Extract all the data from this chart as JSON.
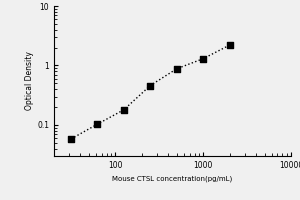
{
  "x_values": [
    31.25,
    62.5,
    125,
    250,
    500,
    1000,
    2000
  ],
  "y_values": [
    0.058,
    0.103,
    0.18,
    0.46,
    0.88,
    1.3,
    2.2
  ],
  "xlabel": "Mouse CTSL concentration(pg/mL)",
  "ylabel": "Optical Density",
  "xlim": [
    20,
    10000
  ],
  "ylim": [
    0.03,
    10
  ],
  "xticks": [
    100,
    1000,
    10000
  ],
  "yticks": [
    0.1,
    1,
    10
  ],
  "ytick_labels": [
    "0.1",
    "1",
    "10"
  ],
  "xtick_labels": [
    "100",
    "1000",
    "10000"
  ],
  "marker": "s",
  "marker_color": "black",
  "marker_size": 4,
  "line_style": ":",
  "line_color": "black",
  "line_width": 1.0,
  "background_color": "#f0f0f0"
}
